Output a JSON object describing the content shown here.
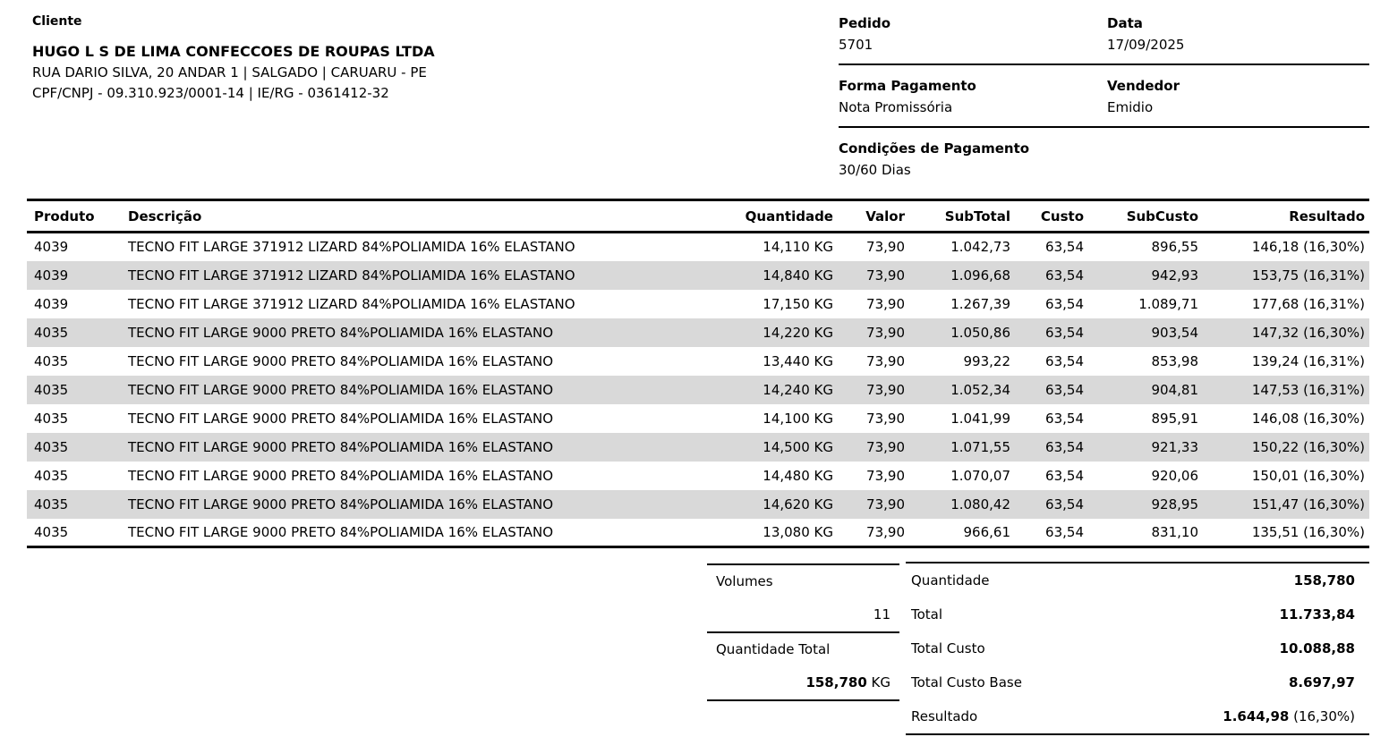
{
  "client": {
    "section_label": "Cliente",
    "name": "HUGO L S DE LIMA CONFECCOES DE ROUPAS LTDA",
    "address": "RUA DARIO SILVA, 20 ANDAR 1 | SALGADO | CARUARU - PE",
    "documents": "CPF/CNPJ - 09.310.923/0001-14 | IE/RG - 0361412-32"
  },
  "order_info": {
    "pedido_label": "Pedido",
    "pedido_value": "5701",
    "data_label": "Data",
    "data_value": "17/09/2025",
    "forma_pagamento_label": "Forma Pagamento",
    "forma_pagamento_value": "Nota Promissória",
    "vendedor_label": "Vendedor",
    "vendedor_value": "Emidio",
    "condicoes_label": "Condições de Pagamento",
    "condicoes_value": "30/60 Dias"
  },
  "table": {
    "headers": [
      "Produto",
      "Descrição",
      "Quantidade",
      "Valor",
      "SubTotal",
      "Custo",
      "SubCusto",
      "Resultado"
    ],
    "rows": [
      {
        "produto": "4039",
        "descricao": "TECNO FIT LARGE 371912 LIZARD 84%POLIAMIDA 16% ELASTANO",
        "quantidade": "14,110 KG",
        "valor": "73,90",
        "subtotal": "1.042,73",
        "custo": "63,54",
        "subcusto": "896,55",
        "resultado": "146,18 (16,30%)"
      },
      {
        "produto": "4039",
        "descricao": "TECNO FIT LARGE 371912 LIZARD 84%POLIAMIDA 16% ELASTANO",
        "quantidade": "14,840 KG",
        "valor": "73,90",
        "subtotal": "1.096,68",
        "custo": "63,54",
        "subcusto": "942,93",
        "resultado": "153,75 (16,31%)"
      },
      {
        "produto": "4039",
        "descricao": "TECNO FIT LARGE 371912 LIZARD 84%POLIAMIDA 16% ELASTANO",
        "quantidade": "17,150 KG",
        "valor": "73,90",
        "subtotal": "1.267,39",
        "custo": "63,54",
        "subcusto": "1.089,71",
        "resultado": "177,68 (16,31%)"
      },
      {
        "produto": "4035",
        "descricao": "TECNO FIT LARGE 9000 PRETO 84%POLIAMIDA 16% ELASTANO",
        "quantidade": "14,220 KG",
        "valor": "73,90",
        "subtotal": "1.050,86",
        "custo": "63,54",
        "subcusto": "903,54",
        "resultado": "147,32 (16,30%)"
      },
      {
        "produto": "4035",
        "descricao": "TECNO FIT LARGE 9000 PRETO 84%POLIAMIDA 16% ELASTANO",
        "quantidade": "13,440 KG",
        "valor": "73,90",
        "subtotal": "993,22",
        "custo": "63,54",
        "subcusto": "853,98",
        "resultado": "139,24 (16,31%)"
      },
      {
        "produto": "4035",
        "descricao": "TECNO FIT LARGE 9000 PRETO 84%POLIAMIDA 16% ELASTANO",
        "quantidade": "14,240 KG",
        "valor": "73,90",
        "subtotal": "1.052,34",
        "custo": "63,54",
        "subcusto": "904,81",
        "resultado": "147,53 (16,31%)"
      },
      {
        "produto": "4035",
        "descricao": "TECNO FIT LARGE 9000 PRETO 84%POLIAMIDA 16% ELASTANO",
        "quantidade": "14,100 KG",
        "valor": "73,90",
        "subtotal": "1.041,99",
        "custo": "63,54",
        "subcusto": "895,91",
        "resultado": "146,08 (16,30%)"
      },
      {
        "produto": "4035",
        "descricao": "TECNO FIT LARGE 9000 PRETO 84%POLIAMIDA 16% ELASTANO",
        "quantidade": "14,500 KG",
        "valor": "73,90",
        "subtotal": "1.071,55",
        "custo": "63,54",
        "subcusto": "921,33",
        "resultado": "150,22 (16,30%)"
      },
      {
        "produto": "4035",
        "descricao": "TECNO FIT LARGE 9000 PRETO 84%POLIAMIDA 16% ELASTANO",
        "quantidade": "14,480 KG",
        "valor": "73,90",
        "subtotal": "1.070,07",
        "custo": "63,54",
        "subcusto": "920,06",
        "resultado": "150,01 (16,30%)"
      },
      {
        "produto": "4035",
        "descricao": "TECNO FIT LARGE 9000 PRETO 84%POLIAMIDA 16% ELASTANO",
        "quantidade": "14,620 KG",
        "valor": "73,90",
        "subtotal": "1.080,42",
        "custo": "63,54",
        "subcusto": "928,95",
        "resultado": "151,47 (16,30%)"
      },
      {
        "produto": "4035",
        "descricao": "TECNO FIT LARGE 9000 PRETO 84%POLIAMIDA 16% ELASTANO",
        "quantidade": "13,080 KG",
        "valor": "73,90",
        "subtotal": "966,61",
        "custo": "63,54",
        "subcusto": "831,10",
        "resultado": "135,51 (16,30%)"
      }
    ]
  },
  "volumes_box": {
    "volumes_label": "Volumes",
    "volumes_value": "11",
    "quantidade_total_label": "Quantidade Total",
    "quantidade_total_value": "158,780",
    "quantidade_total_unit": " KG"
  },
  "totals_box": {
    "rows": [
      {
        "label": "Quantidade",
        "value": "158,780",
        "suffix": ""
      },
      {
        "label": "Total",
        "value": "11.733,84",
        "suffix": ""
      },
      {
        "label": "Total Custo",
        "value": "10.088,88",
        "suffix": ""
      },
      {
        "label": "Total Custo Base",
        "value": "8.697,97",
        "suffix": ""
      },
      {
        "label": "Resultado",
        "value": "1.644,98",
        "suffix": " (16,30%)"
      }
    ]
  },
  "colors": {
    "stripe_gray": "#d9d9d9",
    "text": "#000000",
    "background": "#ffffff"
  }
}
